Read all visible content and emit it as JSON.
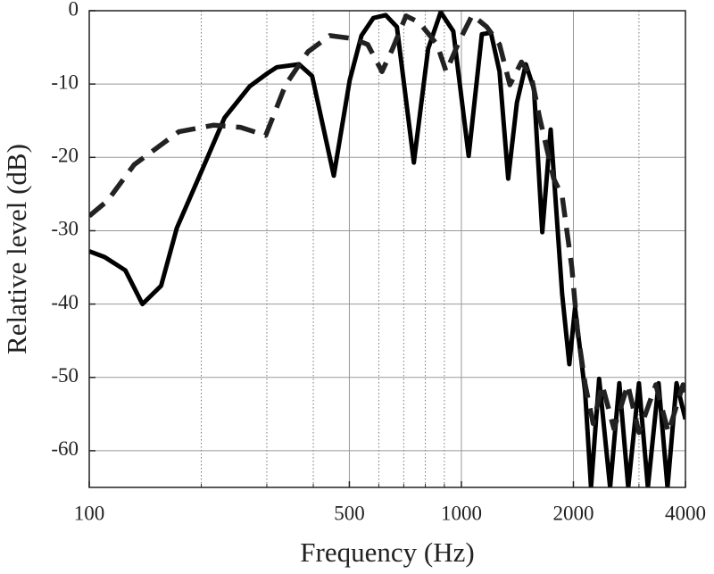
{
  "chart_data": {
    "type": "line",
    "xlabel": "Frequency (Hz)",
    "ylabel": "Relative level (dB)",
    "xscale": "log",
    "xlim": [
      100,
      4000
    ],
    "ylim": [
      -65,
      0
    ],
    "xticks": [
      100,
      500,
      1000,
      2000,
      4000
    ],
    "xminorticks": [
      200,
      300,
      400,
      600,
      700,
      800,
      900,
      3000
    ],
    "yticks": [
      0,
      -10,
      -20,
      -30,
      -40,
      -50,
      -60
    ],
    "grid": true,
    "series": [
      {
        "color": "#000000",
        "dash": "solid",
        "x": [
          100,
          110,
          125,
          139,
          156,
          172,
          203,
          231,
          270,
          302,
          319,
          366,
          397,
          454,
          501,
          539,
          580,
          626,
          671,
          745,
          814,
          880,
          951,
          1046,
          1135,
          1200,
          1266,
          1336,
          1410,
          1490,
          1567,
          1650,
          1737,
          1866,
          1950,
          2020,
          2150,
          2230,
          2345,
          2510,
          2657,
          2807,
          3000,
          3170,
          3388,
          3580,
          3785,
          4000
        ],
        "values": [
          -32.8,
          -33.6,
          -35.4,
          -40,
          -37.5,
          -29.6,
          -21.2,
          -14.6,
          -10.3,
          -8.5,
          -7.7,
          -7.3,
          -8.9,
          -22.5,
          -9.5,
          -3.4,
          -1,
          -0.6,
          -2.2,
          -20.7,
          -5.2,
          -0.2,
          -2.8,
          -19.8,
          -3.2,
          -3,
          -8.3,
          -22.9,
          -12.5,
          -7.3,
          -10.7,
          -30.2,
          -16.2,
          -38.7,
          -48.2,
          -40.5,
          -52,
          -65,
          -50.2,
          -65,
          -50.8,
          -65,
          -50.8,
          -65,
          -50.8,
          -65,
          -50.8,
          -55.7
        ]
      },
      {
        "color": "#222222",
        "dash": "dashed",
        "x": [
          100,
          112,
          132,
          174,
          216,
          255,
          298,
          337,
          387,
          443,
          510,
          560,
          612,
          653,
          710,
          770,
          860,
          910,
          990,
          1070,
          1170,
          1266,
          1350,
          1450,
          1540,
          1620,
          1770,
          1866,
          1980,
          2050,
          2150,
          2260,
          2390,
          2570,
          2800,
          3000,
          3330,
          3600,
          3940,
          4000
        ],
        "values": [
          -28,
          -25.9,
          -21,
          -16.5,
          -15.6,
          -15.9,
          -17,
          -10.1,
          -5.6,
          -3.4,
          -3.8,
          -4.6,
          -8.3,
          -5.2,
          -0.7,
          -1.6,
          -4.6,
          -8.3,
          -4,
          -0.6,
          -2.2,
          -4.6,
          -10.1,
          -7,
          -8.9,
          -14.4,
          -22.9,
          -25.3,
          -35,
          -43.6,
          -50.9,
          -56.3,
          -51,
          -57,
          -51,
          -57.5,
          -51,
          -57.5,
          -51,
          -52
        ]
      }
    ]
  }
}
